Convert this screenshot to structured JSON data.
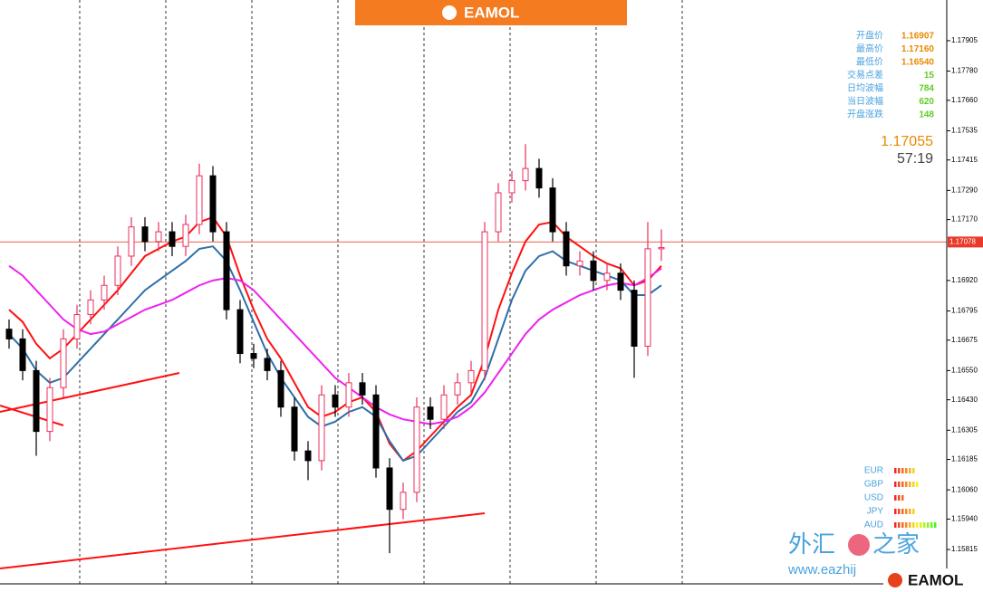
{
  "header": {
    "brand": "EAMOL"
  },
  "chart_data": {
    "type": "candlestick",
    "open": [
      1.1672,
      1.1668,
      1.1655,
      1.163,
      1.1648,
      1.1668,
      1.1678,
      1.1684,
      1.169,
      1.1702,
      1.1714,
      1.1708,
      1.1712,
      1.1706,
      1.1715,
      1.1735,
      1.1712,
      1.168,
      1.1662,
      1.166,
      1.1655,
      1.164,
      1.1622,
      1.1618,
      1.1645,
      1.164,
      1.165,
      1.1645,
      1.1615,
      1.1598,
      1.1605,
      1.164,
      1.1635,
      1.1645,
      1.165,
      1.1655,
      1.1712,
      1.1728,
      1.1733,
      1.1738,
      1.173,
      1.1712,
      1.1698,
      1.17,
      1.1692,
      1.1695,
      1.1688,
      1.1665,
      1.1705
    ],
    "high": [
      1.1676,
      1.1672,
      1.1659,
      1.1652,
      1.1672,
      1.1682,
      1.1688,
      1.1694,
      1.1706,
      1.1718,
      1.1718,
      1.1716,
      1.1716,
      1.1719,
      1.174,
      1.1739,
      1.1716,
      1.1684,
      1.1666,
      1.1664,
      1.1659,
      1.1644,
      1.1626,
      1.1649,
      1.1649,
      1.1654,
      1.1654,
      1.1649,
      1.1619,
      1.1609,
      1.1644,
      1.1644,
      1.1649,
      1.1654,
      1.1659,
      1.1716,
      1.1732,
      1.1737,
      1.1748,
      1.1742,
      1.1734,
      1.1716,
      1.1704,
      1.1704,
      1.1699,
      1.1699,
      1.1692,
      1.1716,
      1.1713
    ],
    "low": [
      1.1664,
      1.1651,
      1.162,
      1.1626,
      1.1644,
      1.1664,
      1.1674,
      1.168,
      1.1686,
      1.1698,
      1.1704,
      1.1704,
      1.1702,
      1.1702,
      1.1711,
      1.1708,
      1.1676,
      1.1658,
      1.1656,
      1.1651,
      1.1636,
      1.1618,
      1.161,
      1.1614,
      1.1636,
      1.1636,
      1.1641,
      1.1611,
      1.158,
      1.1594,
      1.1601,
      1.1631,
      1.1631,
      1.1641,
      1.1646,
      1.1651,
      1.1708,
      1.1724,
      1.1729,
      1.1726,
      1.1708,
      1.1694,
      1.1694,
      1.1688,
      1.1688,
      1.1684,
      1.1652,
      1.1661,
      1.17
    ],
    "close": [
      1.1668,
      1.1655,
      1.163,
      1.1648,
      1.1668,
      1.1678,
      1.1684,
      1.169,
      1.1702,
      1.1714,
      1.1708,
      1.1712,
      1.1706,
      1.1715,
      1.1735,
      1.1712,
      1.168,
      1.1662,
      1.166,
      1.1655,
      1.164,
      1.1622,
      1.1618,
      1.1645,
      1.164,
      1.165,
      1.1645,
      1.1615,
      1.1598,
      1.1605,
      1.164,
      1.1635,
      1.1645,
      1.165,
      1.1655,
      1.1712,
      1.1728,
      1.1733,
      1.1738,
      1.173,
      1.1712,
      1.1698,
      1.17,
      1.1692,
      1.1695,
      1.1688,
      1.1665,
      1.1705,
      1.17055
    ],
    "up_color": "#e8305c",
    "down_color": "#000000",
    "series": [
      {
        "color": "#ff1010",
        "values": [
          1.168,
          1.1675,
          1.1666,
          1.166,
          1.1664,
          1.167,
          1.1676,
          1.1682,
          1.1688,
          1.1695,
          1.1702,
          1.1705,
          1.1708,
          1.171,
          1.1716,
          1.1718,
          1.171,
          1.1694,
          1.168,
          1.1668,
          1.166,
          1.165,
          1.164,
          1.1636,
          1.1638,
          1.1642,
          1.1644,
          1.1638,
          1.1625,
          1.1618,
          1.1622,
          1.1628,
          1.1634,
          1.164,
          1.1645,
          1.166,
          1.168,
          1.1695,
          1.1708,
          1.1715,
          1.1716,
          1.171,
          1.1706,
          1.1702,
          1.1699,
          1.1697,
          1.169,
          1.1692,
          1.1698
        ]
      },
      {
        "color": "#2e6fa8",
        "values": [
          1.167,
          1.1664,
          1.1655,
          1.165,
          1.1652,
          1.1658,
          1.1664,
          1.167,
          1.1676,
          1.1682,
          1.1688,
          1.1692,
          1.1696,
          1.17,
          1.1705,
          1.1706,
          1.17,
          1.1688,
          1.1675,
          1.1662,
          1.1652,
          1.1644,
          1.1636,
          1.1632,
          1.1634,
          1.1638,
          1.164,
          1.1636,
          1.1626,
          1.1618,
          1.162,
          1.1626,
          1.1632,
          1.1638,
          1.1642,
          1.1652,
          1.1668,
          1.1684,
          1.1696,
          1.1702,
          1.1704,
          1.17,
          1.1698,
          1.1696,
          1.1694,
          1.1692,
          1.1686,
          1.1686,
          1.169
        ]
      },
      {
        "color": "#ee22ee",
        "values": [
          1.1698,
          1.1694,
          1.1688,
          1.1682,
          1.1676,
          1.1672,
          1.167,
          1.1671,
          1.1674,
          1.1677,
          1.168,
          1.1682,
          1.1684,
          1.1687,
          1.169,
          1.1692,
          1.1693,
          1.1692,
          1.1688,
          1.1682,
          1.1676,
          1.167,
          1.1664,
          1.1658,
          1.1652,
          1.1648,
          1.1644,
          1.164,
          1.1637,
          1.1635,
          1.1634,
          1.1633,
          1.1634,
          1.1636,
          1.164,
          1.1646,
          1.1654,
          1.1662,
          1.167,
          1.1676,
          1.168,
          1.1683,
          1.1686,
          1.1688,
          1.169,
          1.1691,
          1.169,
          1.1693,
          1.1697
        ]
      }
    ],
    "ylim": [
      1.15674,
      1.18072
    ],
    "yticks": [
      1.17905,
      {
        "value": 1.1778,
        "label": "1.17780"
      },
      {
        "value": 1.1766,
        "label": "1.17660"
      },
      1.17535,
      1.17415,
      {
        "value": 1.1729,
        "label": "1.17290"
      },
      {
        "value": 1.1717,
        "label": "1.17170"
      },
      {
        "value": 1.1692,
        "label": "1.16920"
      },
      1.16795,
      1.16675,
      {
        "value": 1.1655,
        "label": "1.16550"
      },
      {
        "value": 1.1643,
        "label": "1.16430"
      },
      1.16305,
      1.16185,
      {
        "value": 1.1606,
        "label": "1.16060"
      },
      {
        "value": 1.1594,
        "label": "1.15940"
      },
      1.15815
    ],
    "price_line": 1.17078,
    "price_line_color": "#f08070"
  },
  "panel": {
    "rows": [
      [
        "开盘价",
        "1.16907"
      ],
      [
        "最高价",
        "1.17160"
      ],
      [
        "最低价",
        "1.16540"
      ],
      [
        "交易点差",
        "15"
      ],
      [
        "日均波幅",
        "784"
      ],
      [
        "当日波幅",
        "620"
      ],
      [
        "开盘涨跌",
        "148"
      ]
    ],
    "value_colors": [
      "#e88a00",
      "#e88a00",
      "#e88a00",
      "#5fcc22",
      "#5fcc22",
      "#5fcc22",
      "#5fcc22"
    ],
    "bid": 1.17055,
    "timer": "57:19"
  },
  "strength": {
    "names": [
      "EUR",
      "GBP",
      "USD",
      "JPY",
      "AUD"
    ],
    "values": [
      6,
      7,
      3,
      6,
      12
    ]
  },
  "watermark": {
    "left": "外汇",
    "right": "之家",
    "url": "www.eazhij"
  },
  "footer": {
    "brand": "EAMOL"
  }
}
